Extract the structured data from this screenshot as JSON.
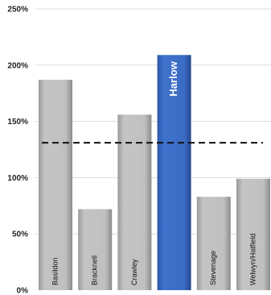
{
  "chart_data": {
    "type": "bar",
    "title": "",
    "xlabel": "",
    "ylabel": "",
    "categories": [
      "Basildon",
      "Bracknell",
      "Crawley",
      "Harlow",
      "Stevenage",
      "Welwyn/Hatfield"
    ],
    "values": [
      187,
      72,
      156,
      209,
      83,
      99
    ],
    "highlight": "Harlow",
    "reference_line": 131,
    "ylim": [
      0,
      250
    ],
    "yticks": [
      "0%",
      "50%",
      "100%",
      "150%",
      "200%",
      "250%"
    ],
    "grid": true,
    "colors": {
      "bar": "#bdbdbd",
      "bar_shade": "#8f8f8f",
      "highlight": "#3a6cc6",
      "highlight_shade": "#264c96",
      "reference_line": "#111111",
      "grid": "#dcdcdc"
    }
  }
}
